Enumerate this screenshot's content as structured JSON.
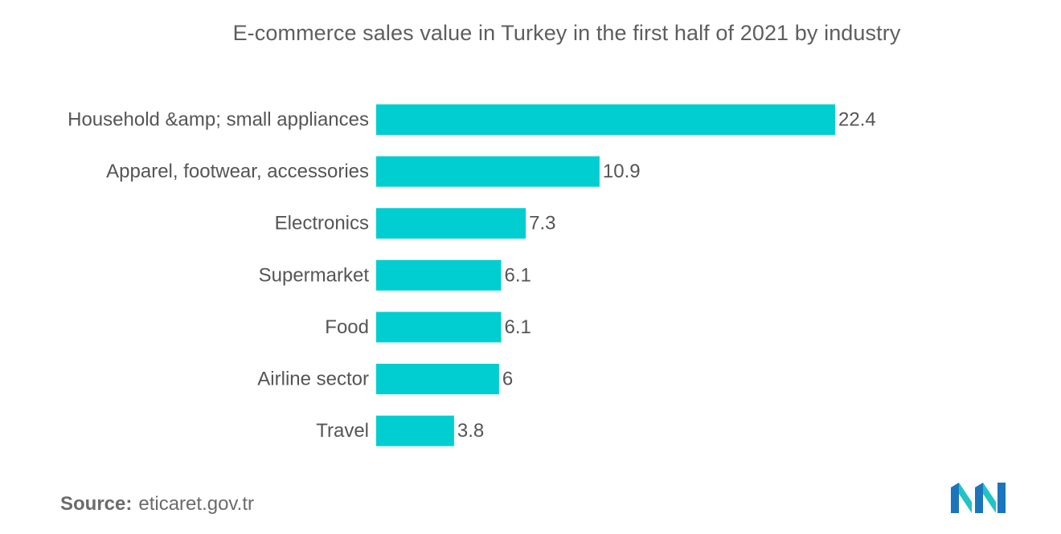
{
  "chart_data": {
    "type": "bar",
    "orientation": "horizontal",
    "title": "E-commerce sales value in Turkey in the first half of 2021 by industry",
    "xlabel": "",
    "ylabel": "",
    "categories": [
      "Household &amp; small appliances",
      "Apparel, footwear, accessories",
      "Electronics",
      "Supermarket",
      "Food",
      "Airline sector",
      "Travel"
    ],
    "values": [
      22.4,
      10.9,
      7.3,
      6.1,
      6.1,
      6,
      3.8
    ],
    "value_labels": [
      "22.4",
      "10.9",
      "7.3",
      "6.1",
      "6.1",
      "6",
      "3.8"
    ],
    "xlim": [
      0,
      22.4
    ],
    "grid": false,
    "legend": "none",
    "bar_color": "#00ced1"
  },
  "source": {
    "label": "Source:",
    "text": "eticaret.gov.tr"
  },
  "logo": {
    "icon": "mordor-intelligence-logo-icon",
    "colors": [
      "#1b75bc",
      "#22c3c8"
    ]
  }
}
